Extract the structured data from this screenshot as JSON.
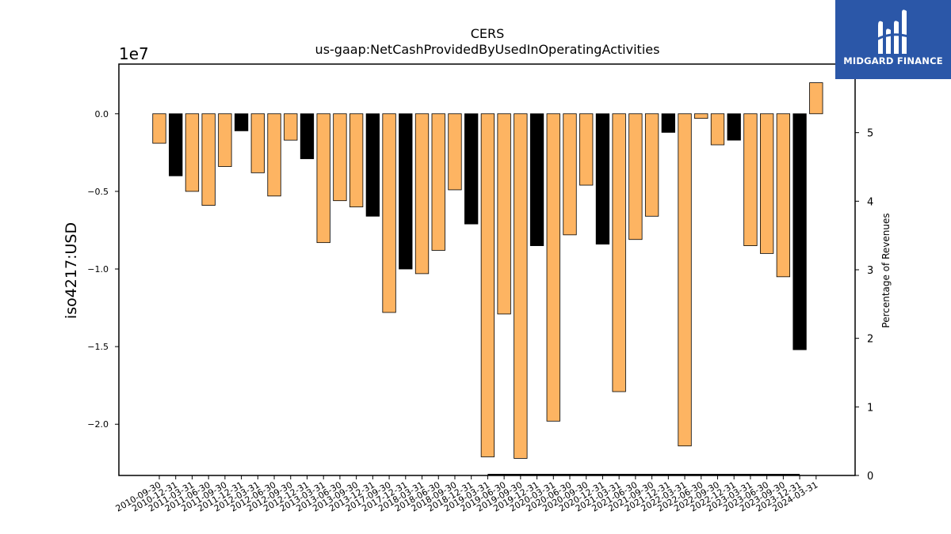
{
  "brand": {
    "name": "MIDGARD FINANCE",
    "bg_color": "#2b57a8"
  },
  "chart_data": {
    "type": "bar",
    "title": "CERS",
    "subtitle": "us-gaap:NetCashProvidedByUsedInOperatingActivities",
    "ylabel": "iso4217:USD",
    "y_offset_label": "1e7",
    "y2label": "Percentage of Revenues",
    "ylim": [
      -2.33,
      0.32
    ],
    "y_ticks": [
      0.0,
      -0.5,
      -1.0,
      -1.5,
      -2.0
    ],
    "y_tick_labels": [
      "0.0",
      "−0.5",
      "−1.0",
      "−1.5",
      "−2.0"
    ],
    "y2lim": [
      0,
      6
    ],
    "y2_ticks": [
      0,
      1,
      2,
      3,
      4,
      5
    ],
    "grid": false,
    "colors": {
      "highlight": "#fdb462",
      "fourth_quarter": "#000000"
    },
    "categories": [
      "2010-09-30",
      "2010-12-31",
      "2011-03-31",
      "2011-06-30",
      "2011-09-30",
      "2011-12-31",
      "2012-03-31",
      "2012-06-30",
      "2012-09-30",
      "2012-12-31",
      "2013-03-31",
      "2013-06-30",
      "2013-09-30",
      "2013-12-31",
      "2017-09-30",
      "2017-12-31",
      "2018-03-31",
      "2018-06-30",
      "2018-09-30",
      "2018-12-31",
      "2019-03-31",
      "2019-06-30",
      "2019-09-30",
      "2019-12-31",
      "2020-03-31",
      "2020-06-30",
      "2020-09-30",
      "2020-12-31",
      "2021-03-31",
      "2021-06-30",
      "2021-09-30",
      "2021-12-31",
      "2022-03-31",
      "2022-06-30",
      "2022-09-30",
      "2022-12-31",
      "2023-03-31",
      "2023-06-30",
      "2023-09-30",
      "2023-12-31",
      "2024-03-31"
    ],
    "values": [
      -0.19,
      -0.4,
      -0.5,
      -0.59,
      -0.34,
      -0.11,
      -0.38,
      -0.53,
      -0.17,
      -0.29,
      -0.83,
      -0.56,
      -0.6,
      -0.66,
      -1.28,
      -1.0,
      -1.03,
      -0.88,
      -0.49,
      -0.71,
      -2.21,
      -1.29,
      -2.22,
      -0.85,
      -1.98,
      -0.78,
      -0.46,
      -0.84,
      -1.79,
      -0.81,
      -0.66,
      -0.12,
      -2.14,
      -0.03,
      -0.2,
      -0.17,
      -0.85,
      -0.9,
      -1.05,
      -1.52,
      0.2
    ],
    "bar_colors": [
      "#fdb462",
      "#000000",
      "#fdb462",
      "#fdb462",
      "#fdb462",
      "#000000",
      "#fdb462",
      "#fdb462",
      "#fdb462",
      "#000000",
      "#fdb462",
      "#fdb462",
      "#fdb462",
      "#000000",
      "#fdb462",
      "#000000",
      "#fdb462",
      "#fdb462",
      "#fdb462",
      "#000000",
      "#fdb462",
      "#fdb462",
      "#fdb462",
      "#000000",
      "#fdb462",
      "#fdb462",
      "#fdb462",
      "#000000",
      "#fdb462",
      "#fdb462",
      "#fdb462",
      "#000000",
      "#fdb462",
      "#fdb462",
      "#fdb462",
      "#000000",
      "#fdb462",
      "#fdb462",
      "#fdb462",
      "#000000",
      "#fdb462"
    ],
    "pct_of_revenues": [
      null,
      null,
      null,
      null,
      null,
      null,
      null,
      null,
      null,
      null,
      null,
      null,
      null,
      null,
      null,
      null,
      null,
      null,
      null,
      null,
      0,
      0,
      0,
      0,
      0,
      0,
      0,
      0,
      0,
      0,
      0,
      0,
      0,
      0,
      0,
      0,
      0,
      0,
      0,
      0,
      null
    ]
  }
}
